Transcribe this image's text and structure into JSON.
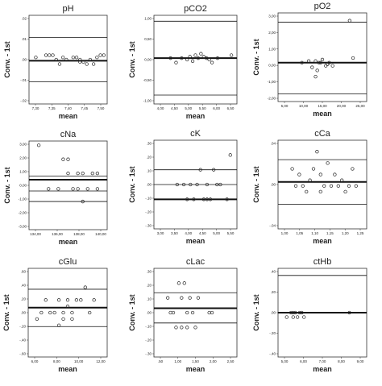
{
  "chart_data": [
    {
      "type": "scatter",
      "title": "pH",
      "xlabel": "mean",
      "ylabel": "Conv. - 1st",
      "xlim": [
        7.27,
        7.5
      ],
      "ylim": [
        -0.02,
        0.02
      ],
      "xticks": [
        "7,30",
        "7,35",
        "7,40",
        "7,45",
        "7,50"
      ],
      "yticks": [
        ".02",
        ".01",
        ".00",
        "-.01",
        "-.02"
      ],
      "ref_lines": [
        0.01,
        -0.0005,
        -0.01
      ],
      "points": [
        [
          7.29,
          0.001
        ],
        [
          7.32,
          0.002
        ],
        [
          7.33,
          0.002
        ],
        [
          7.34,
          0.002
        ],
        [
          7.35,
          0.0
        ],
        [
          7.36,
          -0.002
        ],
        [
          7.37,
          0.001
        ],
        [
          7.38,
          0.0
        ],
        [
          7.4,
          0.001
        ],
        [
          7.41,
          0.001
        ],
        [
          7.42,
          0.0
        ],
        [
          7.43,
          -0.001
        ],
        [
          7.44,
          -0.002
        ],
        [
          7.45,
          0.0
        ],
        [
          7.46,
          -0.002
        ],
        [
          7.47,
          0.001
        ],
        [
          7.48,
          0.002
        ],
        [
          7.49,
          0.002
        ],
        [
          7.42,
          -0.001
        ]
      ]
    },
    {
      "type": "scatter",
      "title": "pCO2",
      "xlabel": "mean",
      "ylabel": "Conv. - 1st",
      "xlim": [
        3.7,
        6.7
      ],
      "ylim": [
        -1.5,
        1.5
      ],
      "xticks": [
        "4,00",
        "4,50",
        "5,00",
        "5,50",
        "6,00",
        "6,50"
      ],
      "yticks": [
        "1,00",
        "0,50",
        "0,00",
        "-0,50",
        "-1,00"
      ],
      "ref_lines": [
        1.3,
        0.05,
        -1.2
      ],
      "points": [
        [
          4.3,
          0.05
        ],
        [
          4.5,
          -0.1
        ],
        [
          4.7,
          0.05
        ],
        [
          4.9,
          0.0
        ],
        [
          5.0,
          0.1
        ],
        [
          5.1,
          -0.05
        ],
        [
          5.2,
          0.15
        ],
        [
          5.3,
          0.05
        ],
        [
          5.4,
          0.2
        ],
        [
          5.5,
          0.1
        ],
        [
          5.6,
          0.05
        ],
        [
          5.7,
          0.0
        ],
        [
          5.8,
          -0.1
        ],
        [
          6.0,
          0.05
        ],
        [
          6.5,
          0.15
        ]
      ]
    },
    {
      "type": "scatter",
      "title": "pO2",
      "xlabel": "mean",
      "ylabel": "Conv. - 1st",
      "xlim": [
        0,
        26
      ],
      "ylim": [
        -2.5,
        3.2
      ],
      "xticks": [
        "5,00",
        "10,00",
        "15,00",
        "20,00",
        "25,00"
      ],
      "yticks": [
        "3,00",
        "2,00",
        "1,00",
        "0,00",
        "-1,00",
        "-2,00"
      ],
      "ref_lines": [
        2.6,
        0.0,
        -2.0
      ],
      "points": [
        [
          7,
          0.0
        ],
        [
          9,
          0.1
        ],
        [
          10,
          -0.3
        ],
        [
          11,
          0.1
        ],
        [
          11.5,
          -0.5
        ],
        [
          12,
          0.0
        ],
        [
          12.5,
          0.0
        ],
        [
          13,
          0.2
        ],
        [
          14,
          -0.2
        ],
        [
          14.5,
          -0.1
        ],
        [
          15,
          0.0
        ],
        [
          16,
          -0.2
        ],
        [
          11,
          -0.9
        ],
        [
          21,
          2.7
        ],
        [
          22,
          0.3
        ]
      ]
    },
    {
      "type": "scatter",
      "title": "cNa",
      "xlabel": "mean",
      "ylabel": "Conv. - 1st",
      "xlim": [
        133,
        141
      ],
      "ylim": [
        -3,
        3.3
      ],
      "xticks": [
        "134,00",
        "136,00",
        "138,00",
        "140,00"
      ],
      "yticks": [
        "3,00",
        "2,00",
        "1,00",
        "0,00",
        "-1,00",
        "-2,00",
        "-3,00"
      ],
      "ref_lines": [
        0.8,
        0.55,
        -0.25,
        -1.0
      ],
      "points": [
        [
          134,
          3.0
        ],
        [
          135,
          -0.1
        ],
        [
          136,
          -0.1
        ],
        [
          136.5,
          2.0
        ],
        [
          137,
          2.0
        ],
        [
          137,
          1.0
        ],
        [
          137.5,
          -0.1
        ],
        [
          138,
          1.0
        ],
        [
          138,
          -0.1
        ],
        [
          138.5,
          1.0
        ],
        [
          138.5,
          -1.0
        ],
        [
          139,
          -0.1
        ],
        [
          139.5,
          1.0
        ],
        [
          140,
          1.0
        ],
        [
          140,
          -0.1
        ]
      ]
    },
    {
      "type": "scatter",
      "title": "cK",
      "xlabel": "mean",
      "ylabel": "Conv. - 1st",
      "xlim": [
        3.0,
        5.5
      ],
      "ylim": [
        -0.3,
        0.3
      ],
      "xticks": [
        "3,00",
        "3,50",
        "4,00",
        "4,50",
        "5,00",
        "5,50"
      ],
      "yticks": [
        ".30",
        ".20",
        ".10",
        ".00",
        "-.10",
        "-.20",
        "-.30"
      ],
      "ref_lines": [
        0.1,
        0.0,
        -0.1
      ],
      "points": [
        [
          3.7,
          0.0
        ],
        [
          3.9,
          0.0
        ],
        [
          4.0,
          -0.1
        ],
        [
          4.1,
          0.0
        ],
        [
          4.2,
          -0.1
        ],
        [
          4.3,
          0.0
        ],
        [
          4.4,
          0.1
        ],
        [
          4.5,
          -0.1
        ],
        [
          4.6,
          0.0
        ],
        [
          4.6,
          -0.1
        ],
        [
          4.7,
          -0.1
        ],
        [
          4.8,
          0.1
        ],
        [
          4.9,
          0.0
        ],
        [
          5.0,
          0.0
        ],
        [
          5.2,
          -0.1
        ],
        [
          5.3,
          0.2
        ]
      ]
    },
    {
      "type": "scatter",
      "title": "cCa",
      "xlabel": "mean",
      "ylabel": "Conv. - 1st",
      "xlim": [
        1.0,
        1.25
      ],
      "ylim": [
        -0.075,
        0.08
      ],
      "xticks": [
        "1,00",
        "1,05",
        "1,10",
        "1,15",
        "1,20",
        "1,25"
      ],
      "yticks": [
        ".04",
        ".00",
        "-.04"
      ],
      "ref_lines": [
        0.046,
        0.007,
        -0.032
      ],
      "points": [
        [
          1.04,
          0.03
        ],
        [
          1.05,
          0.0
        ],
        [
          1.06,
          0.02
        ],
        [
          1.07,
          0.0
        ],
        [
          1.08,
          -0.01
        ],
        [
          1.09,
          0.01
        ],
        [
          1.1,
          0.03
        ],
        [
          1.11,
          0.06
        ],
        [
          1.12,
          0.02
        ],
        [
          1.13,
          0.0
        ],
        [
          1.14,
          0.04
        ],
        [
          1.15,
          0.0
        ],
        [
          1.16,
          0.02
        ],
        [
          1.17,
          0.0
        ],
        [
          1.18,
          0.01
        ],
        [
          1.19,
          -0.01
        ],
        [
          1.2,
          0.0
        ],
        [
          1.21,
          0.03
        ],
        [
          1.22,
          0.0
        ],
        [
          1.12,
          -0.01
        ]
      ]
    },
    {
      "type": "scatter",
      "title": "cGlu",
      "xlabel": "mean",
      "ylabel": "Conv. - 1st",
      "xlim": [
        3.5,
        12.5
      ],
      "ylim": [
        -0.7,
        0.7
      ],
      "xticks": [
        "6,00",
        "8,00",
        "10,00",
        "12,00"
      ],
      "yticks": [
        ".60",
        ".40",
        ".20",
        ".00",
        "-.20",
        "-.40",
        "-.60"
      ],
      "ref_lines": [
        0.37,
        0.08,
        -0.22
      ],
      "points": [
        [
          4.5,
          -0.1
        ],
        [
          5.0,
          0.0
        ],
        [
          5.5,
          0.2
        ],
        [
          6.0,
          0.0
        ],
        [
          6.5,
          0.0
        ],
        [
          7.0,
          0.2
        ],
        [
          7.0,
          -0.2
        ],
        [
          7.5,
          0.0
        ],
        [
          7.5,
          -0.1
        ],
        [
          8.0,
          0.2
        ],
        [
          8.0,
          0.1
        ],
        [
          8.5,
          0.0
        ],
        [
          8.5,
          -0.1
        ],
        [
          9.0,
          0.2
        ],
        [
          9.5,
          0.2
        ],
        [
          10.0,
          0.4
        ],
        [
          10.5,
          0.0
        ],
        [
          11.0,
          0.2
        ]
      ]
    },
    {
      "type": "scatter",
      "title": "cLac",
      "xlabel": "mean",
      "ylabel": "Conv. - 1st",
      "xlim": [
        0.0,
        3.0
      ],
      "ylim": [
        -0.3,
        0.3
      ],
      "xticks": [
        ".50",
        "1,00",
        "1,50",
        "2,00",
        "2,50"
      ],
      "yticks": [
        ".30",
        ".20",
        ".10",
        ".00",
        "-.10",
        "-.20",
        "-.30"
      ],
      "ref_lines": [
        0.135,
        0.03,
        -0.07
      ],
      "points": [
        [
          0.5,
          0.1
        ],
        [
          0.6,
          0.0
        ],
        [
          0.7,
          0.0
        ],
        [
          0.8,
          -0.1
        ],
        [
          0.9,
          0.2
        ],
        [
          1.0,
          0.1
        ],
        [
          1.0,
          -0.1
        ],
        [
          1.1,
          0.2
        ],
        [
          1.2,
          0.0
        ],
        [
          1.2,
          -0.1
        ],
        [
          1.3,
          0.1
        ],
        [
          1.4,
          0.0
        ],
        [
          1.5,
          -0.1
        ],
        [
          1.6,
          0.1
        ],
        [
          2.0,
          0.0
        ],
        [
          2.1,
          0.0
        ]
      ]
    },
    {
      "type": "scatter",
      "title": "ctHb",
      "xlabel": "mean",
      "ylabel": "Conv. - 1st",
      "xlim": [
        4.9,
        9.0
      ],
      "ylim": [
        -0.5,
        0.5
      ],
      "xticks": [
        "5,00",
        "6,00",
        "7,00",
        "8,00",
        "9,00"
      ],
      "yticks": [
        ".40",
        ".20",
        ".00",
        "-.20",
        "-.40"
      ],
      "ref_lines": [
        0.42,
        0.0
      ],
      "points": [
        [
          5.3,
          -0.05
        ],
        [
          5.5,
          0.0
        ],
        [
          5.6,
          -0.05
        ],
        [
          5.6,
          0.0
        ],
        [
          5.7,
          0.0
        ],
        [
          5.8,
          -0.05
        ],
        [
          5.9,
          0.0
        ],
        [
          6.0,
          0.0
        ],
        [
          6.1,
          -0.05
        ],
        [
          8.2,
          0.0
        ]
      ]
    }
  ]
}
